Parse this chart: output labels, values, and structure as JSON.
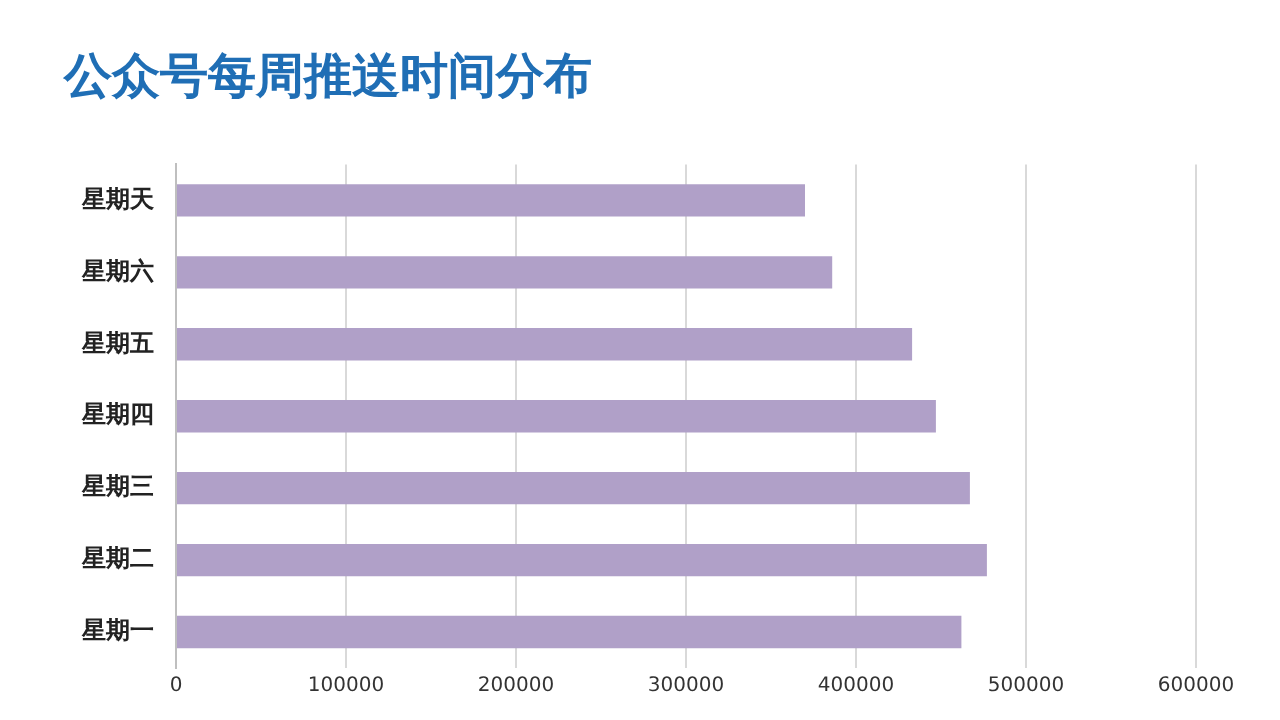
{
  "chart_data": {
    "type": "bar",
    "orientation": "horizontal",
    "title": "公众号每周推送时间分布",
    "categories": [
      "星期天",
      "星期六",
      "星期五",
      "星期四",
      "星期三",
      "星期二",
      "星期一"
    ],
    "values": [
      370000,
      386000,
      433000,
      447000,
      467000,
      477000,
      462000
    ],
    "color": "#b0a0c8",
    "xlim": [
      0,
      600000
    ],
    "xticks": [
      0,
      100000,
      200000,
      300000,
      400000,
      500000,
      600000
    ],
    "grid": "x"
  }
}
